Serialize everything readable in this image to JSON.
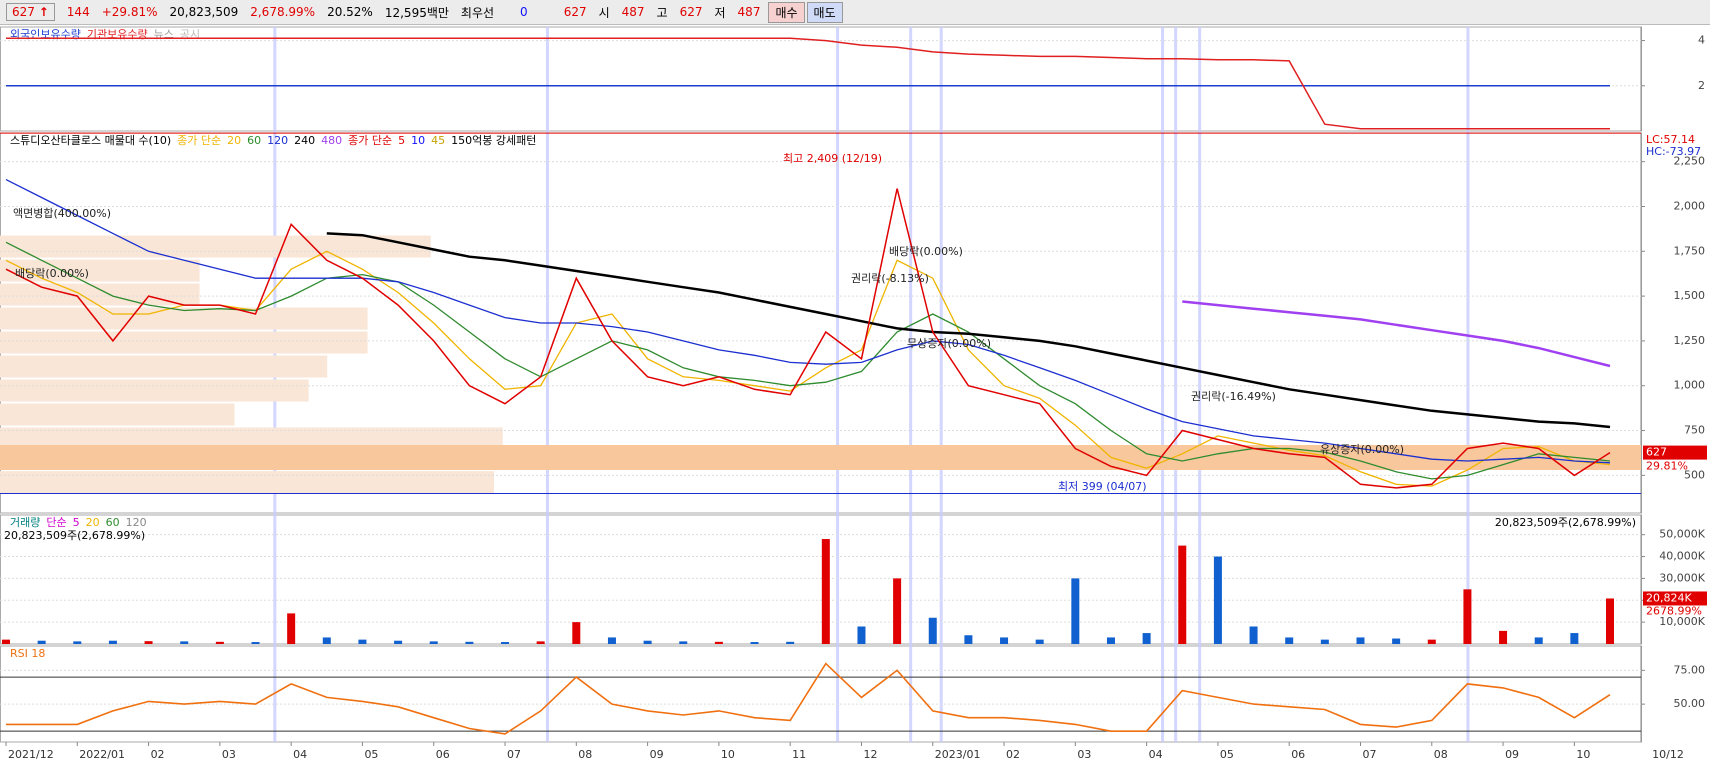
{
  "toolbar": {
    "items": [
      "627",
      "144",
      "+29.81%",
      "20,823,509",
      "2,678.99%",
      "20.52%",
      "12,595백만",
      "최우선",
      "0",
      "627",
      "시",
      "487",
      "고",
      "627",
      "저",
      "487"
    ],
    "buttons": [
      "매수",
      "매도"
    ]
  },
  "chart_data": [
    {
      "type": "line",
      "legend": [
        "외국인보유수량",
        "기관보유수량",
        "뉴스",
        "공시"
      ],
      "ylim": [
        0,
        4.6
      ],
      "yticks": [
        2,
        4
      ],
      "series": [
        {
          "name": "외국인보유수량",
          "color": "#1c3fd0",
          "values": [
            2,
            2,
            2,
            2,
            2,
            2,
            2,
            2,
            2,
            2,
            2,
            2,
            2,
            2,
            2,
            2,
            2,
            2,
            2,
            2,
            2,
            2,
            2,
            2,
            2,
            2,
            2,
            2,
            2,
            2,
            2,
            2,
            2,
            2,
            2,
            2,
            2,
            2,
            2,
            2,
            2,
            2,
            2,
            2,
            2,
            2
          ]
        },
        {
          "name": "기관보유수량",
          "color": "#e02020",
          "values": [
            4.1,
            4.1,
            4.1,
            4.1,
            4.1,
            4.1,
            4.1,
            4.1,
            4.1,
            4.1,
            4.1,
            4.1,
            4.1,
            4.1,
            4.1,
            4.1,
            4.1,
            4.1,
            4.1,
            4.1,
            4.1,
            4.1,
            4.1,
            4.0,
            3.8,
            3.7,
            3.5,
            3.4,
            3.35,
            3.3,
            3.3,
            3.25,
            3.2,
            3.2,
            3.15,
            3.15,
            3.1,
            0.3,
            0.1,
            0.1,
            0.1,
            0.1,
            0.1,
            0.1,
            0.1,
            0.1
          ]
        }
      ]
    },
    {
      "type": "line",
      "profile_label": "스튜디오산타클로스 매물대 수(10)",
      "legend_prefix": "종가 단순",
      "legend2": [
        {
          "text": "종가 단순",
          "color": "#e00000"
        },
        {
          "text": "5",
          "color": "#e00000"
        },
        {
          "text": "10",
          "color": "#1010ff"
        },
        {
          "text": "45",
          "color": "#c8a000"
        }
      ],
      "pattern_label": "150억봉 강세패턴",
      "values": [
        1650,
        1550,
        1500,
        1250,
        1500,
        1450,
        1450,
        1400,
        1900,
        1700,
        1600,
        1450,
        1250,
        1000,
        900,
        1050,
        1600,
        1250,
        1050,
        1000,
        1050,
        980,
        950,
        1300,
        1150,
        2100,
        1300,
        1000,
        950,
        900,
        650,
        550,
        500,
        750,
        700,
        650,
        620,
        600,
        450,
        430,
        450,
        650,
        680,
        650,
        500,
        627
      ],
      "color": "#e00000",
      "series": [
        {
          "name": "20",
          "color": "#f0b400",
          "values": [
            1700,
            1600,
            1520,
            1400,
            1400,
            1450,
            1450,
            1420,
            1650,
            1750,
            1650,
            1520,
            1350,
            1150,
            980,
            1000,
            1350,
            1400,
            1150,
            1050,
            1030,
            1000,
            970,
            1100,
            1200,
            1700,
            1600,
            1200,
            1000,
            930,
            780,
            600,
            540,
            620,
            720,
            680,
            640,
            610,
            520,
            450,
            440,
            530,
            650,
            660,
            580,
            560
          ]
        },
        {
          "name": "60",
          "color": "#2e8b2e",
          "values": [
            1800,
            1700,
            1600,
            1500,
            1450,
            1420,
            1430,
            1420,
            1500,
            1600,
            1620,
            1580,
            1450,
            1300,
            1150,
            1050,
            1150,
            1250,
            1200,
            1100,
            1050,
            1030,
            1000,
            1020,
            1080,
            1300,
            1400,
            1300,
            1150,
            1000,
            900,
            750,
            620,
            580,
            620,
            650,
            650,
            630,
            580,
            520,
            480,
            500,
            560,
            620,
            600,
            580
          ]
        },
        {
          "name": "120",
          "color": "#1c2fd0",
          "values": [
            2150,
            2050,
            1950,
            1850,
            1750,
            1700,
            1650,
            1600,
            1600,
            1600,
            1600,
            1580,
            1520,
            1450,
            1380,
            1350,
            1350,
            1330,
            1300,
            1250,
            1200,
            1170,
            1130,
            1120,
            1130,
            1200,
            1250,
            1230,
            1170,
            1100,
            1030,
            950,
            870,
            800,
            760,
            720,
            700,
            680,
            650,
            620,
            590,
            580,
            590,
            600,
            580,
            570
          ]
        },
        {
          "name": "240",
          "color": "#000000",
          "values": [
            null,
            null,
            null,
            null,
            null,
            null,
            null,
            null,
            null,
            1850,
            1840,
            1800,
            1760,
            1720,
            1700,
            1670,
            1640,
            1610,
            1580,
            1550,
            1520,
            1480,
            1440,
            1400,
            1360,
            1320,
            1300,
            1290,
            1270,
            1250,
            1220,
            1180,
            1140,
            1100,
            1060,
            1020,
            980,
            950,
            920,
            890,
            860,
            840,
            820,
            800,
            790,
            770
          ]
        },
        {
          "name": "480",
          "color": "#a040f0",
          "values": [
            null,
            null,
            null,
            null,
            null,
            null,
            null,
            null,
            null,
            null,
            null,
            null,
            null,
            null,
            null,
            null,
            null,
            null,
            null,
            null,
            null,
            null,
            null,
            null,
            null,
            null,
            null,
            null,
            null,
            null,
            null,
            null,
            null,
            1470,
            1450,
            1430,
            1410,
            1390,
            1370,
            1340,
            1310,
            1280,
            1250,
            1210,
            1160,
            1110
          ]
        }
      ],
      "ylim": [
        290,
        2410
      ],
      "yticks": [
        {
          "value": 500,
          "label": "500"
        },
        {
          "value": 750,
          "label": "750"
        },
        {
          "value": 1000,
          "label": "1,000"
        },
        {
          "value": 1250,
          "label": "1,250"
        },
        {
          "value": 1500,
          "label": "1,500"
        },
        {
          "value": 1750,
          "label": "1,750"
        },
        {
          "value": 2000,
          "label": "2,000"
        },
        {
          "value": 2250,
          "label": "2,250"
        }
      ],
      "high_line": 2409,
      "low_line": 399,
      "annotations": [
        "최고 2,409 (12/19)",
        "최저 399 (04/07)",
        "액면병합(400.00%)",
        "배당락(0.00%)",
        "권리락(-8.13%)",
        "배당락(0.00%)",
        "무상증자(0.00%)",
        "권리락(-16.49%)",
        "유상증자(0.00%)"
      ],
      "right_labels": [
        "LC:57.14",
        "HC:-73.97"
      ],
      "last_price_label": "627",
      "last_change_label": "29.81%"
    },
    {
      "type": "bar",
      "legend_title": "거래량",
      "legend": [
        {
          "text": "단순",
          "color": "#d000d0"
        },
        {
          "text": "5",
          "color": "#d000d0"
        },
        {
          "text": "20",
          "color": "#f0b400"
        },
        {
          "text": "60",
          "color": "#2e8b2e"
        },
        {
          "text": "120",
          "color": "#888888"
        }
      ],
      "volume_label": "20,823,509주(2,678.99%)",
      "values": [
        2000000,
        1500000,
        1200000,
        1500000,
        1300000,
        1200000,
        1000000,
        900000,
        14000000,
        3000000,
        2000000,
        1500000,
        1200000,
        1000000,
        900000,
        1200000,
        10000000,
        3000000,
        1500000,
        1200000,
        1000000,
        900000,
        1000000,
        48000000,
        8000000,
        30000000,
        12000000,
        4000000,
        3000000,
        2000000,
        30000000,
        3000000,
        5000000,
        45000000,
        40000000,
        8000000,
        3000000,
        2000000,
        3000000,
        2500000,
        2000000,
        25000000,
        6000000,
        3000000,
        5000000,
        20823509
      ],
      "up_color": "#e00000",
      "down_color": "#1060d0",
      "ylim": [
        0,
        59000000
      ],
      "yticks": [
        {
          "value": 10000000,
          "label": "10,000K"
        },
        {
          "value": 20000000,
          "label": "20,000K"
        },
        {
          "value": 30000000,
          "label": "30,000K"
        },
        {
          "value": 40000000,
          "label": "40,000K"
        },
        {
          "value": 50000000,
          "label": "50,000K"
        }
      ],
      "last_value_label": "20,824K",
      "last_ratio_label": "2678.99%"
    },
    {
      "type": "line",
      "title": "RSI 18",
      "categories": [
        "2021/12",
        null,
        "2022/01",
        null,
        "02",
        null,
        "03",
        null,
        "04",
        null,
        "05",
        null,
        "06",
        null,
        "07",
        null,
        "08",
        null,
        "09",
        null,
        "10",
        null,
        "11",
        null,
        "12",
        null,
        "2023/01",
        null,
        "02",
        null,
        "03",
        null,
        "04",
        null,
        "05",
        null,
        "06",
        null,
        "07",
        null,
        "08",
        null,
        "09",
        null,
        "10",
        null
      ],
      "x_end_label": "10/12",
      "values": [
        35,
        35,
        35,
        45,
        52,
        50,
        52,
        50,
        65,
        55,
        52,
        48,
        40,
        32,
        28,
        45,
        70,
        50,
        45,
        42,
        45,
        40,
        38,
        80,
        55,
        75,
        45,
        40,
        40,
        38,
        35,
        30,
        30,
        60,
        55,
        50,
        48,
        46,
        35,
        33,
        38,
        65,
        62,
        55,
        40,
        57
      ],
      "color": "#f07010",
      "levels": [
        70,
        30
      ],
      "ylim": [
        22,
        93
      ],
      "yticks": [
        {
          "value": 50,
          "label": "50.00"
        },
        {
          "value": 75,
          "label": "75.00"
        }
      ]
    }
  ]
}
